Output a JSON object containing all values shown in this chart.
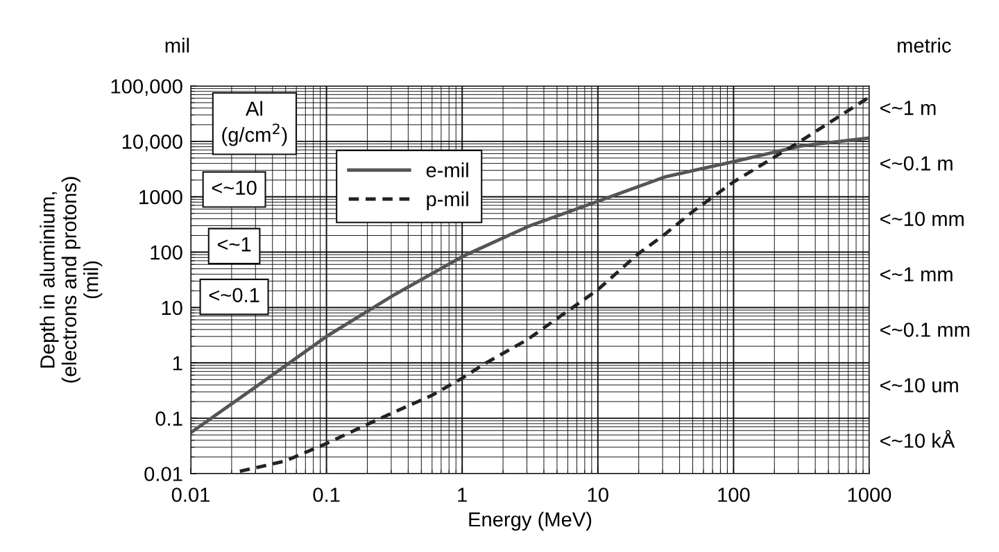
{
  "chart_data": {
    "type": "line",
    "xlabel": "Energy (MeV)",
    "ylabel": "Depth in aluminium,\n(electrons and protons)\n(mil)",
    "log": "xy",
    "grid": true,
    "legend": "top left",
    "xlim": [
      0.01,
      1000
    ],
    "xticks": [
      {
        "value": 0.01,
        "label": "0.01"
      },
      {
        "value": 0.1,
        "label": "0.1"
      },
      1,
      10,
      100,
      1000
    ],
    "ylim": [
      0.01,
      100000
    ],
    "yticks": [
      {
        "value": 0.01,
        "label": "0.01"
      },
      {
        "value": 0.1,
        "label": "0.1"
      },
      1,
      10,
      100,
      1000,
      {
        "value": 10000,
        "label": "10,000"
      },
      {
        "value": 100000,
        "label": "100,000"
      }
    ],
    "annotations": [
      "mil",
      "metric",
      "Al\n(g/cm$^{2}$)",
      "<~10",
      "<~1",
      "<~0.1",
      "<~1 m",
      "<~0.1 m",
      "<~10 mm",
      "<~1 mm",
      "<~0.1 mm",
      "<~10 um",
      "<~10 kÅ"
    ],
    "series": [
      {
        "name": "e-mil",
        "color": "#555555",
        "line_style": "solid",
        "x": [
          0.01,
          0.0316,
          0.1,
          0.316,
          1,
          3.16,
          10,
          31.6,
          100,
          316,
          1000
        ],
        "values": [
          0.055,
          0.4,
          3,
          17,
          83,
          300,
          830,
          2300,
          4300,
          8300,
          11500
        ]
      },
      {
        "name": "p-mil",
        "color": "#222222",
        "line_style": "dashed",
        "x": [
          0.023,
          0.05,
          0.1,
          0.25,
          0.6,
          1,
          1.5,
          3,
          10,
          20,
          30,
          50,
          100,
          300,
          1000
        ],
        "values": [
          0.011,
          0.017,
          0.035,
          0.1,
          0.26,
          0.53,
          1,
          2.6,
          21,
          95,
          195,
          540,
          1850,
          9500,
          63000
        ]
      }
    ]
  }
}
